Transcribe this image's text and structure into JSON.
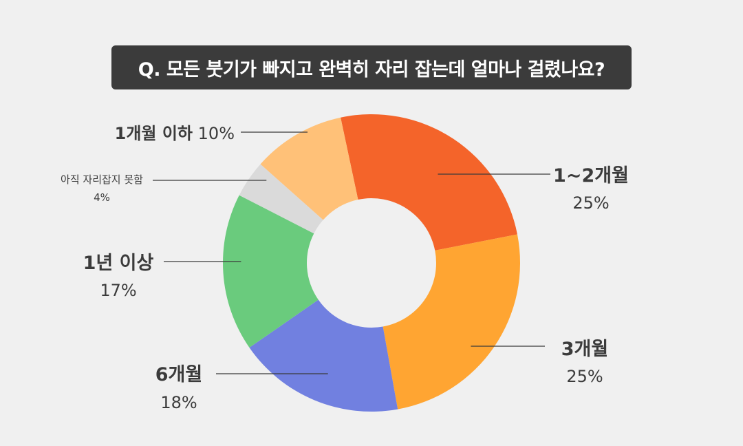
{
  "question": {
    "title": "Q. 모든 붓기가 빠지고 완벽히 자리 잡는데 얼마나 걸렸나요?"
  },
  "chart_data": {
    "type": "pie",
    "title": "Q. 모든 붓기가 빠지고 완벽히 자리 잡는데 얼마나 걸렸나요?",
    "donut": true,
    "start_angle_deg": -12,
    "direction": "clockwise",
    "slices": [
      {
        "label": "1~2개월",
        "value_label": "25%",
        "value": 25,
        "color": "#f4642a"
      },
      {
        "label": "3개월",
        "value_label": "25%",
        "value": 25,
        "color": "#ffa532"
      },
      {
        "label": "6개월",
        "value_label": "18%",
        "value": 18,
        "color": "#7180e0"
      },
      {
        "label": "1년 이상",
        "value_label": "17%",
        "value": 17,
        "color": "#6acb7d"
      },
      {
        "label": "아직 자리잡지 못함",
        "value_label": "4%",
        "value": 4,
        "color": "#dadada"
      },
      {
        "label": "1개월 이하",
        "value_label": "10%",
        "value": 10,
        "color": "#ffc178"
      }
    ]
  }
}
